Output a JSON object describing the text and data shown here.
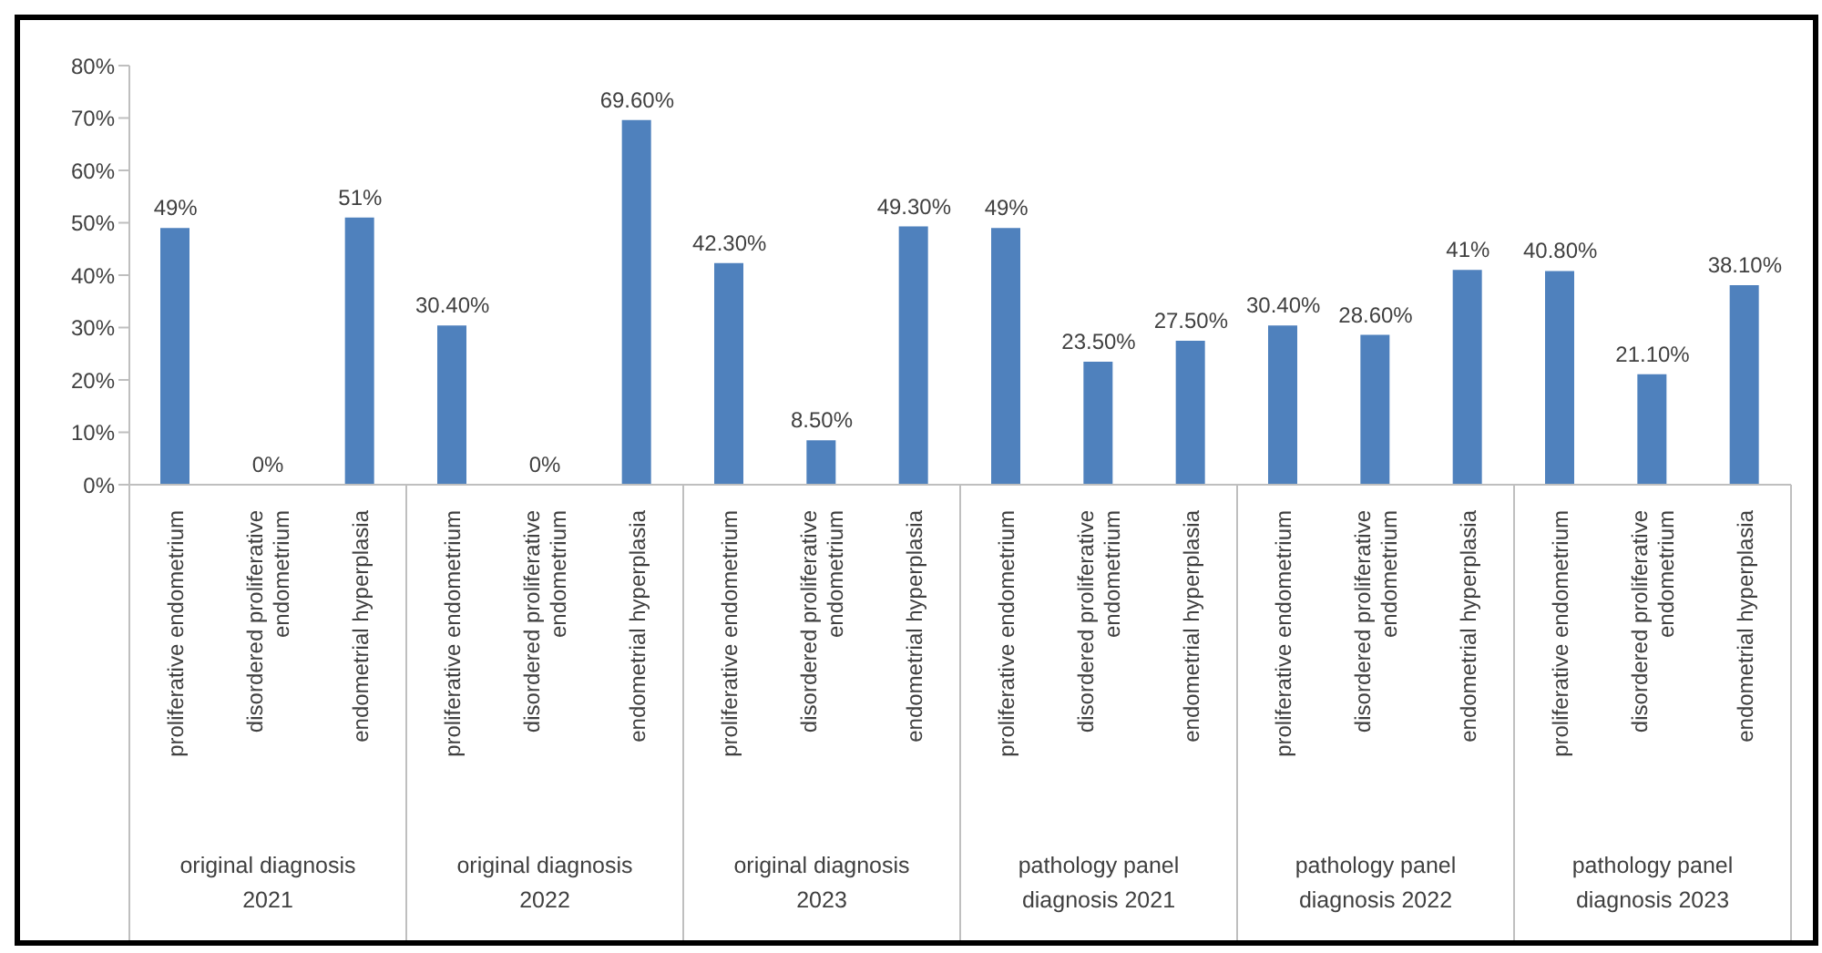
{
  "chart_data": {
    "type": "bar",
    "categories": [
      "proliferative endometrium",
      "disordered proliferative endometrium",
      "endometrial hyperplasia",
      "proliferative endometrium",
      "disordered proliferative endometrium",
      "endometrial hyperplasia",
      "proliferative endometrium",
      "disordered proliferative endometrium",
      "endometrial hyperplasia",
      "proliferative endometrium",
      "disordered proliferative endometrium",
      "endometrial hyperplasia",
      "proliferative endometrium",
      "disordered proliferative endometrium",
      "endometrial hyperplasia",
      "proliferative endometrium",
      "disordered proliferative endometrium",
      "endometrial hyperplasia"
    ],
    "values": [
      49,
      0,
      51,
      30.4,
      0,
      69.6,
      42.3,
      8.5,
      49.3,
      49,
      23.5,
      27.5,
      30.4,
      28.6,
      41,
      40.8,
      21.1,
      38.1
    ],
    "value_labels": [
      "49%",
      "0%",
      "51%",
      "30.40%",
      "0%",
      "69.60%",
      "42.30%",
      "8.50%",
      "49.30%",
      "49%",
      "23.50%",
      "27.50%",
      "30.40%",
      "28.60%",
      "41%",
      "40.80%",
      "21.10%",
      "38.10%"
    ],
    "color": "#4f81bd",
    "ylim": [
      0,
      80
    ],
    "yticks": [
      {
        "value": 0,
        "label": "0%"
      },
      {
        "value": 10,
        "label": "10%"
      },
      {
        "value": 20,
        "label": "20%"
      },
      {
        "value": 30,
        "label": "30%"
      },
      {
        "value": 40,
        "label": "40%"
      },
      {
        "value": 50,
        "label": "50%"
      },
      {
        "value": 60,
        "label": "60%"
      },
      {
        "value": 70,
        "label": "70%"
      },
      {
        "value": 80,
        "label": "80%"
      }
    ],
    "annotations": [
      "original diagnosis 2021",
      "original diagnosis 2022",
      "original diagnosis 2023",
      "pathology panel diagnosis 2021",
      "pathology panel diagnosis 2022",
      "pathology panel diagnosis 2023"
    ],
    "grid": false,
    "legend": false
  }
}
